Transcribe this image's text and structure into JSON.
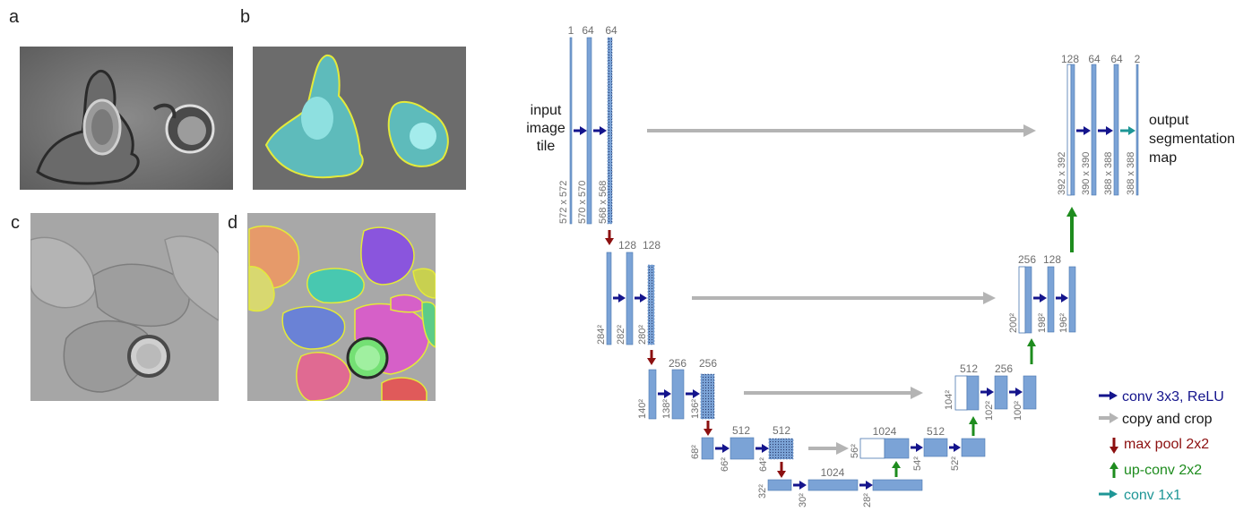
{
  "panels": [
    {
      "letter": "a",
      "kind": "phase-contrast-raw"
    },
    {
      "letter": "b",
      "kind": "phase-contrast-segmented"
    },
    {
      "letter": "c",
      "kind": "dic-raw"
    },
    {
      "letter": "d",
      "kind": "dic-segmented"
    }
  ],
  "unet": {
    "input_label": [
      "input",
      "image",
      "tile"
    ],
    "output_label": [
      "output",
      "segmentation",
      "map"
    ],
    "channels": {
      "l1": [
        "1",
        "64",
        "64"
      ],
      "l2": [
        "128",
        "128"
      ],
      "l3": [
        "256",
        "256"
      ],
      "l4": [
        "512",
        "512"
      ],
      "l5": [
        "1024"
      ],
      "u4": [
        "1024",
        "512"
      ],
      "u3": [
        "512",
        "256"
      ],
      "u2": [
        "256",
        "128"
      ],
      "u1": [
        "128",
        "64",
        "64",
        "2"
      ]
    },
    "sizes": {
      "l1": [
        "572 x 572",
        "570 x 570",
        "568 x 568"
      ],
      "l2": [
        "284²",
        "282²",
        "280²"
      ],
      "l3": [
        "140²",
        "138²",
        "136²"
      ],
      "l4": [
        "68²",
        "66²",
        "64²"
      ],
      "l5": [
        "32²",
        "30²",
        "28²"
      ],
      "u4": [
        "56²",
        "54²",
        "52²"
      ],
      "u3": [
        "104²",
        "102²",
        "100²"
      ],
      "u2": [
        "200²",
        "198²",
        "196²"
      ],
      "u1": [
        "392 x 392",
        "390 x 390",
        "388 x 388",
        "388 x 388"
      ]
    }
  },
  "legend": [
    {
      "label": "conv 3x3, ReLU",
      "color": "#14148c"
    },
    {
      "label": "copy and crop",
      "color": "#b4b4b4"
    },
    {
      "label": "max pool 2x2",
      "color": "#8c1010"
    },
    {
      "label": "up-conv 2x2",
      "color": "#1e8c1e"
    },
    {
      "label": "conv 1x1",
      "color": "#1e9696"
    }
  ],
  "colors": {
    "feature_map": "#7ba3d6",
    "feature_map_border": "#4a76b0",
    "conv": "#14148c",
    "copy": "#b4b4b4",
    "pool": "#8c1010",
    "upconv": "#1e8c1e",
    "conv1x1": "#1e9696",
    "label_gray": "#6e6e6e"
  }
}
